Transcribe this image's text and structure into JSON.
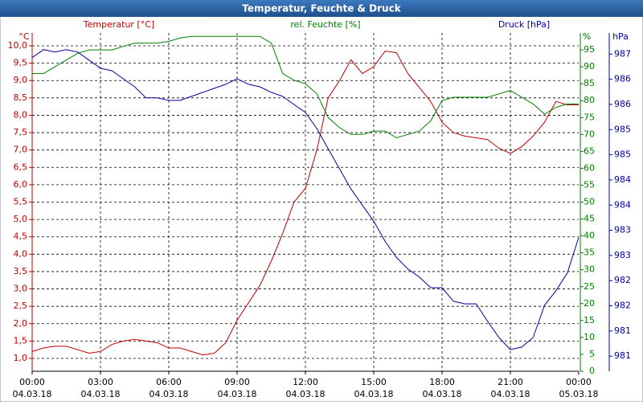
{
  "chart_data": {
    "type": "line",
    "title": "Temperatur, Feuchte & Druck",
    "ylabel": "°C",
    "y2label": "%",
    "y3label": "hPa",
    "x": [
      0,
      0.5,
      1,
      1.5,
      2,
      2.5,
      3,
      3.5,
      4,
      4.5,
      5,
      5.5,
      6,
      6.5,
      7,
      7.5,
      8,
      8.5,
      9,
      9.5,
      10,
      10.5,
      11,
      11.5,
      12,
      12.5,
      13,
      13.5,
      14,
      14.5,
      15,
      15.5,
      16,
      16.5,
      17,
      17.5,
      18,
      18.5,
      19,
      19.5,
      20,
      20.5,
      21,
      21.5,
      22,
      22.5,
      23,
      23.5,
      24
    ],
    "xlim": [
      0,
      24
    ],
    "xticks": [
      {
        "value": 0,
        "label": "00:00"
      },
      {
        "value": 3,
        "label": "03:00"
      },
      {
        "value": 6,
        "label": "06:00"
      },
      {
        "value": 9,
        "label": "09:00"
      },
      {
        "value": 12,
        "label": "12:00"
      },
      {
        "value": 15,
        "label": "15:00"
      },
      {
        "value": 18,
        "label": "18:00"
      },
      {
        "value": 21,
        "label": "21:00"
      },
      {
        "value": 24,
        "label": "00:00"
      }
    ],
    "xtick_dates": [
      "04.03.18",
      "04.03.18",
      "04.03.18",
      "04.03.18",
      "04.03.18",
      "04.03.18",
      "04.03.18",
      "04.03.18",
      "05.03.18"
    ],
    "ylim": [
      0.63,
      10.37
    ],
    "yticks": [
      {
        "value": 1,
        "label": "1,0"
      },
      {
        "value": 1.5,
        "label": "1,5"
      },
      {
        "value": 2,
        "label": "2,0"
      },
      {
        "value": 2.5,
        "label": "2,5"
      },
      {
        "value": 3,
        "label": "3,0"
      },
      {
        "value": 3.5,
        "label": "3,5"
      },
      {
        "value": 4,
        "label": "4,0"
      },
      {
        "value": 4.5,
        "label": "4,5"
      },
      {
        "value": 5,
        "label": "5,0"
      },
      {
        "value": 5.5,
        "label": "5,5"
      },
      {
        "value": 6,
        "label": "6,0"
      },
      {
        "value": 6.5,
        "label": "6,5"
      },
      {
        "value": 7,
        "label": "7,0"
      },
      {
        "value": 7.5,
        "label": "7,5"
      },
      {
        "value": 8,
        "label": "8,0"
      },
      {
        "value": 8.5,
        "label": "8,5"
      },
      {
        "value": 9,
        "label": "9,0"
      },
      {
        "value": 9.5,
        "label": "9,5"
      },
      {
        "value": 10,
        "label": "10,0"
      }
    ],
    "y2lim": [
      0,
      100
    ],
    "y2ticks": [
      0,
      5,
      10,
      15,
      20,
      25,
      30,
      35,
      40,
      45,
      50,
      55,
      60,
      65,
      70,
      75,
      80,
      85,
      90,
      95
    ],
    "y3lim": [
      980.4,
      987.12
    ],
    "y3ticks": [
      {
        "value": 980.7,
        "label": "981"
      },
      {
        "value": 981.2,
        "label": "981"
      },
      {
        "value": 981.7,
        "label": "982"
      },
      {
        "value": 982.2,
        "label": "982"
      },
      {
        "value": 982.7,
        "label": "983"
      },
      {
        "value": 983.2,
        "label": "983"
      },
      {
        "value": 983.7,
        "label": "984"
      },
      {
        "value": 984.2,
        "label": "984"
      },
      {
        "value": 984.7,
        "label": "985"
      },
      {
        "value": 985.2,
        "label": "985"
      },
      {
        "value": 985.7,
        "label": "986"
      },
      {
        "value": 986.2,
        "label": "986"
      },
      {
        "value": 986.7,
        "label": "987"
      }
    ],
    "grid": true,
    "series": [
      {
        "name": "Temperatur [°C]",
        "color": "#c00000",
        "axis": "y",
        "values": [
          1.2,
          1.3,
          1.35,
          1.35,
          1.25,
          1.15,
          1.2,
          1.4,
          1.5,
          1.55,
          1.5,
          1.45,
          1.3,
          1.3,
          1.2,
          1.1,
          1.15,
          1.45,
          2.1,
          2.6,
          3.1,
          3.8,
          4.6,
          5.5,
          5.9,
          7.0,
          8.5,
          9.0,
          9.6,
          9.2,
          9.4,
          9.85,
          9.8,
          9.2,
          8.8,
          8.4,
          7.8,
          7.5,
          7.4,
          7.35,
          7.3,
          7.05,
          6.9,
          7.1,
          7.4,
          7.8,
          8.4,
          8.3,
          8.3
        ]
      },
      {
        "name": "rel. Feuchte [%]",
        "color": "#008000",
        "axis": "y2",
        "values": [
          88,
          88,
          90,
          92,
          94,
          95,
          95,
          95,
          96,
          97,
          97,
          97,
          97.5,
          98.5,
          99,
          99,
          99,
          99,
          99,
          99,
          99,
          97,
          88,
          86,
          85,
          82,
          75,
          72,
          70,
          70,
          71,
          71,
          69,
          70,
          71,
          74,
          80,
          81,
          81,
          81,
          81,
          82,
          83,
          81,
          79,
          76,
          78,
          79,
          79
        ]
      },
      {
        "name": "Druck [hPa]",
        "color": "#0000a0",
        "axis": "y3",
        "values": [
          986.63,
          986.79,
          986.74,
          986.79,
          986.74,
          986.58,
          986.42,
          986.37,
          986.21,
          986.05,
          985.83,
          985.83,
          985.78,
          985.78,
          985.86,
          985.94,
          986.02,
          986.1,
          986.21,
          986.1,
          986.05,
          985.94,
          985.86,
          985.7,
          985.54,
          985.22,
          984.82,
          984.42,
          984.02,
          983.7,
          983.38,
          982.98,
          982.66,
          982.43,
          982.27,
          982.06,
          982.06,
          981.79,
          981.74,
          981.74,
          981.39,
          981.07,
          980.83,
          980.88,
          981.07,
          981.71,
          982.0,
          982.35,
          983.06
        ]
      }
    ]
  }
}
